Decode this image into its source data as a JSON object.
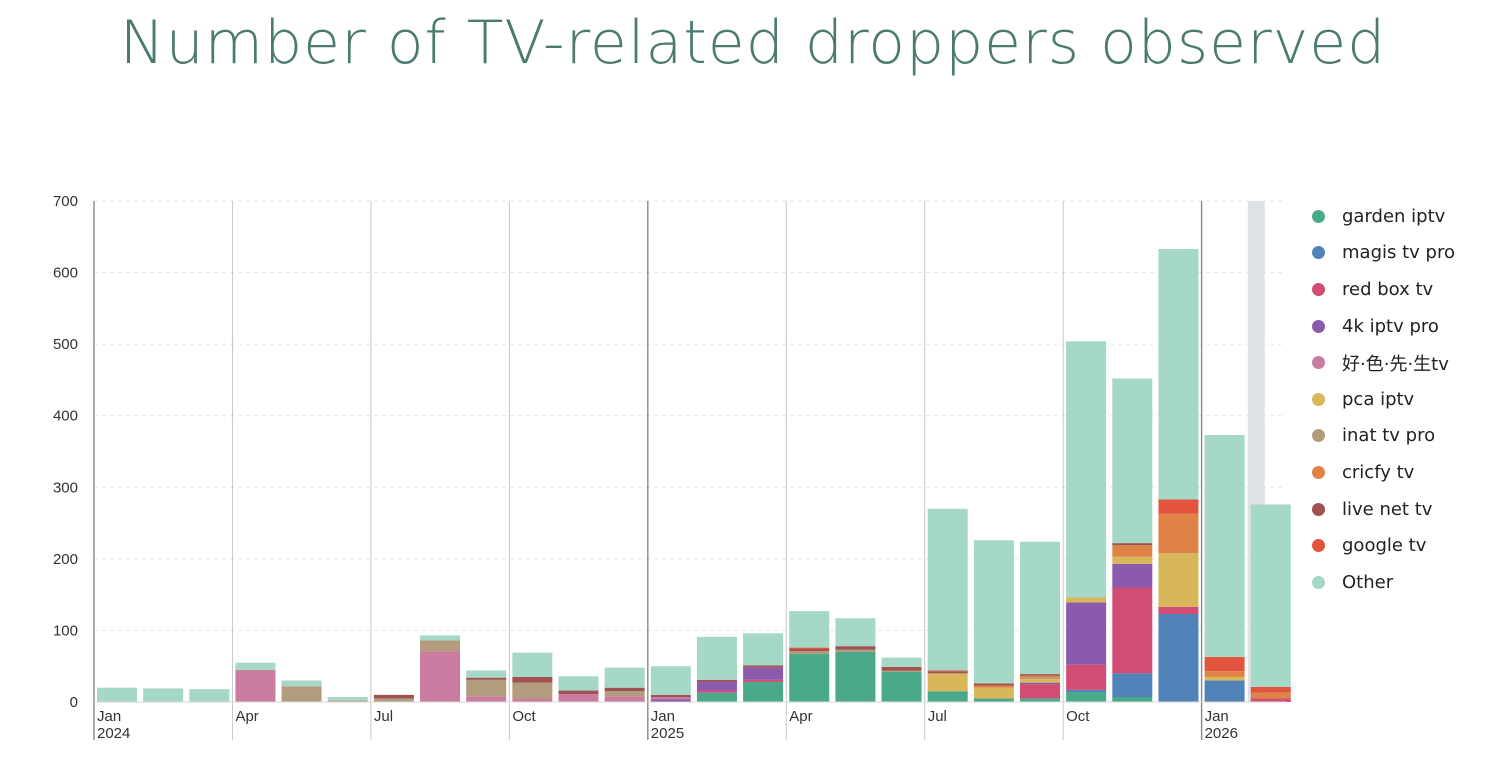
{
  "chart_data": {
    "type": "bar",
    "stacked": true,
    "title": "Number of TV-related droppers observed",
    "xlabel": "",
    "ylabel": "",
    "ylim": [
      0,
      700
    ],
    "y_ticks": [
      0,
      100,
      200,
      300,
      400,
      500,
      600,
      700
    ],
    "grid": true,
    "legend_position": "right",
    "categories": [
      "2024-01",
      "2024-02",
      "2024-03",
      "2024-04",
      "2024-05",
      "2024-06",
      "2024-07",
      "2024-08",
      "2024-09",
      "2024-10",
      "2024-11",
      "2024-12",
      "2025-01",
      "2025-02",
      "2025-03",
      "2025-04",
      "2025-05",
      "2025-06",
      "2025-07",
      "2025-08",
      "2025-09",
      "2025-10",
      "2025-11",
      "2025-12",
      "2026-01",
      "2026-02"
    ],
    "x_tick_labels": [
      {
        "label": "Jan",
        "sublabel": "2024",
        "category": "2024-01"
      },
      {
        "label": "Apr",
        "sublabel": "",
        "category": "2024-04"
      },
      {
        "label": "Jul",
        "sublabel": "",
        "category": "2024-07"
      },
      {
        "label": "Oct",
        "sublabel": "",
        "category": "2024-10"
      },
      {
        "label": "Jan",
        "sublabel": "2025",
        "category": "2025-01"
      },
      {
        "label": "Apr",
        "sublabel": "",
        "category": "2025-04"
      },
      {
        "label": "Jul",
        "sublabel": "",
        "category": "2025-07"
      },
      {
        "label": "Oct",
        "sublabel": "",
        "category": "2025-10"
      },
      {
        "label": "Jan",
        "sublabel": "2026",
        "category": "2026-01"
      }
    ],
    "partial_period_category": "2026-02",
    "series": [
      {
        "name": "garden iptv",
        "color": "#4aa98a",
        "values": [
          0,
          0,
          0,
          0,
          0,
          0,
          0,
          0,
          0,
          0,
          0,
          0,
          0,
          13,
          28,
          67,
          70,
          42,
          15,
          5,
          5,
          14,
          7,
          0,
          0,
          0
        ]
      },
      {
        "name": "magis tv pro",
        "color": "#5182b8",
        "values": [
          0,
          0,
          0,
          0,
          0,
          0,
          0,
          0,
          0,
          0,
          0,
          0,
          0,
          0,
          0,
          0,
          0,
          0,
          0,
          0,
          0,
          3,
          33,
          123,
          30,
          0
        ]
      },
      {
        "name": "red box tv",
        "color": "#d14d73",
        "values": [
          0,
          0,
          0,
          0,
          0,
          0,
          0,
          0,
          0,
          0,
          0,
          0,
          0,
          3,
          3,
          0,
          0,
          0,
          0,
          0,
          20,
          35,
          120,
          10,
          0,
          5
        ]
      },
      {
        "name": "4k iptv pro",
        "color": "#8a5aad",
        "values": [
          0,
          0,
          0,
          0,
          0,
          0,
          0,
          0,
          0,
          0,
          0,
          0,
          4,
          12,
          17,
          0,
          0,
          0,
          0,
          0,
          2,
          87,
          33,
          0,
          0,
          0
        ]
      },
      {
        "name": "好·色·先·生tv",
        "color": "#c97ba0",
        "values": [
          0,
          0,
          0,
          44,
          0,
          0,
          0,
          71,
          8,
          5,
          11,
          8,
          3,
          0,
          0,
          0,
          0,
          0,
          0,
          0,
          0,
          0,
          0,
          0,
          0,
          0
        ]
      },
      {
        "name": "pca iptv",
        "color": "#d8b65a",
        "values": [
          0,
          0,
          0,
          0,
          0,
          0,
          0,
          0,
          0,
          0,
          0,
          0,
          0,
          0,
          0,
          0,
          0,
          0,
          25,
          15,
          5,
          7,
          10,
          75,
          5,
          0
        ]
      },
      {
        "name": "inat tv pro",
        "color": "#b29c7d",
        "values": [
          0,
          0,
          0,
          1,
          22,
          2,
          5,
          15,
          23,
          22,
          0,
          7,
          0,
          0,
          0,
          4,
          3,
          2,
          0,
          0,
          2,
          0,
          0,
          0,
          0,
          0
        ]
      },
      {
        "name": "cricfy tv",
        "color": "#de8345",
        "values": [
          0,
          0,
          0,
          0,
          0,
          0,
          0,
          0,
          0,
          0,
          0,
          0,
          0,
          0,
          0,
          0,
          0,
          0,
          0,
          3,
          3,
          0,
          16,
          55,
          8,
          8
        ]
      },
      {
        "name": "live net tv",
        "color": "#9e5350",
        "values": [
          0,
          0,
          0,
          0,
          0,
          0,
          5,
          0,
          3,
          8,
          5,
          5,
          3,
          3,
          3,
          3,
          5,
          5,
          3,
          3,
          2,
          0,
          3,
          0,
          0,
          0
        ]
      },
      {
        "name": "google tv",
        "color": "#e3543e",
        "values": [
          0,
          0,
          0,
          0,
          0,
          0,
          0,
          0,
          0,
          0,
          0,
          0,
          0,
          0,
          0,
          2,
          0,
          0,
          1,
          0,
          0,
          0,
          0,
          20,
          20,
          8
        ]
      },
      {
        "name": "Other",
        "color": "#a6d8c7",
        "values": [
          20,
          19,
          18,
          10,
          8,
          5,
          0,
          7,
          10,
          34,
          20,
          28,
          40,
          60,
          45,
          51,
          39,
          13,
          226,
          200,
          185,
          358,
          230,
          350,
          310,
          255
        ]
      }
    ]
  }
}
